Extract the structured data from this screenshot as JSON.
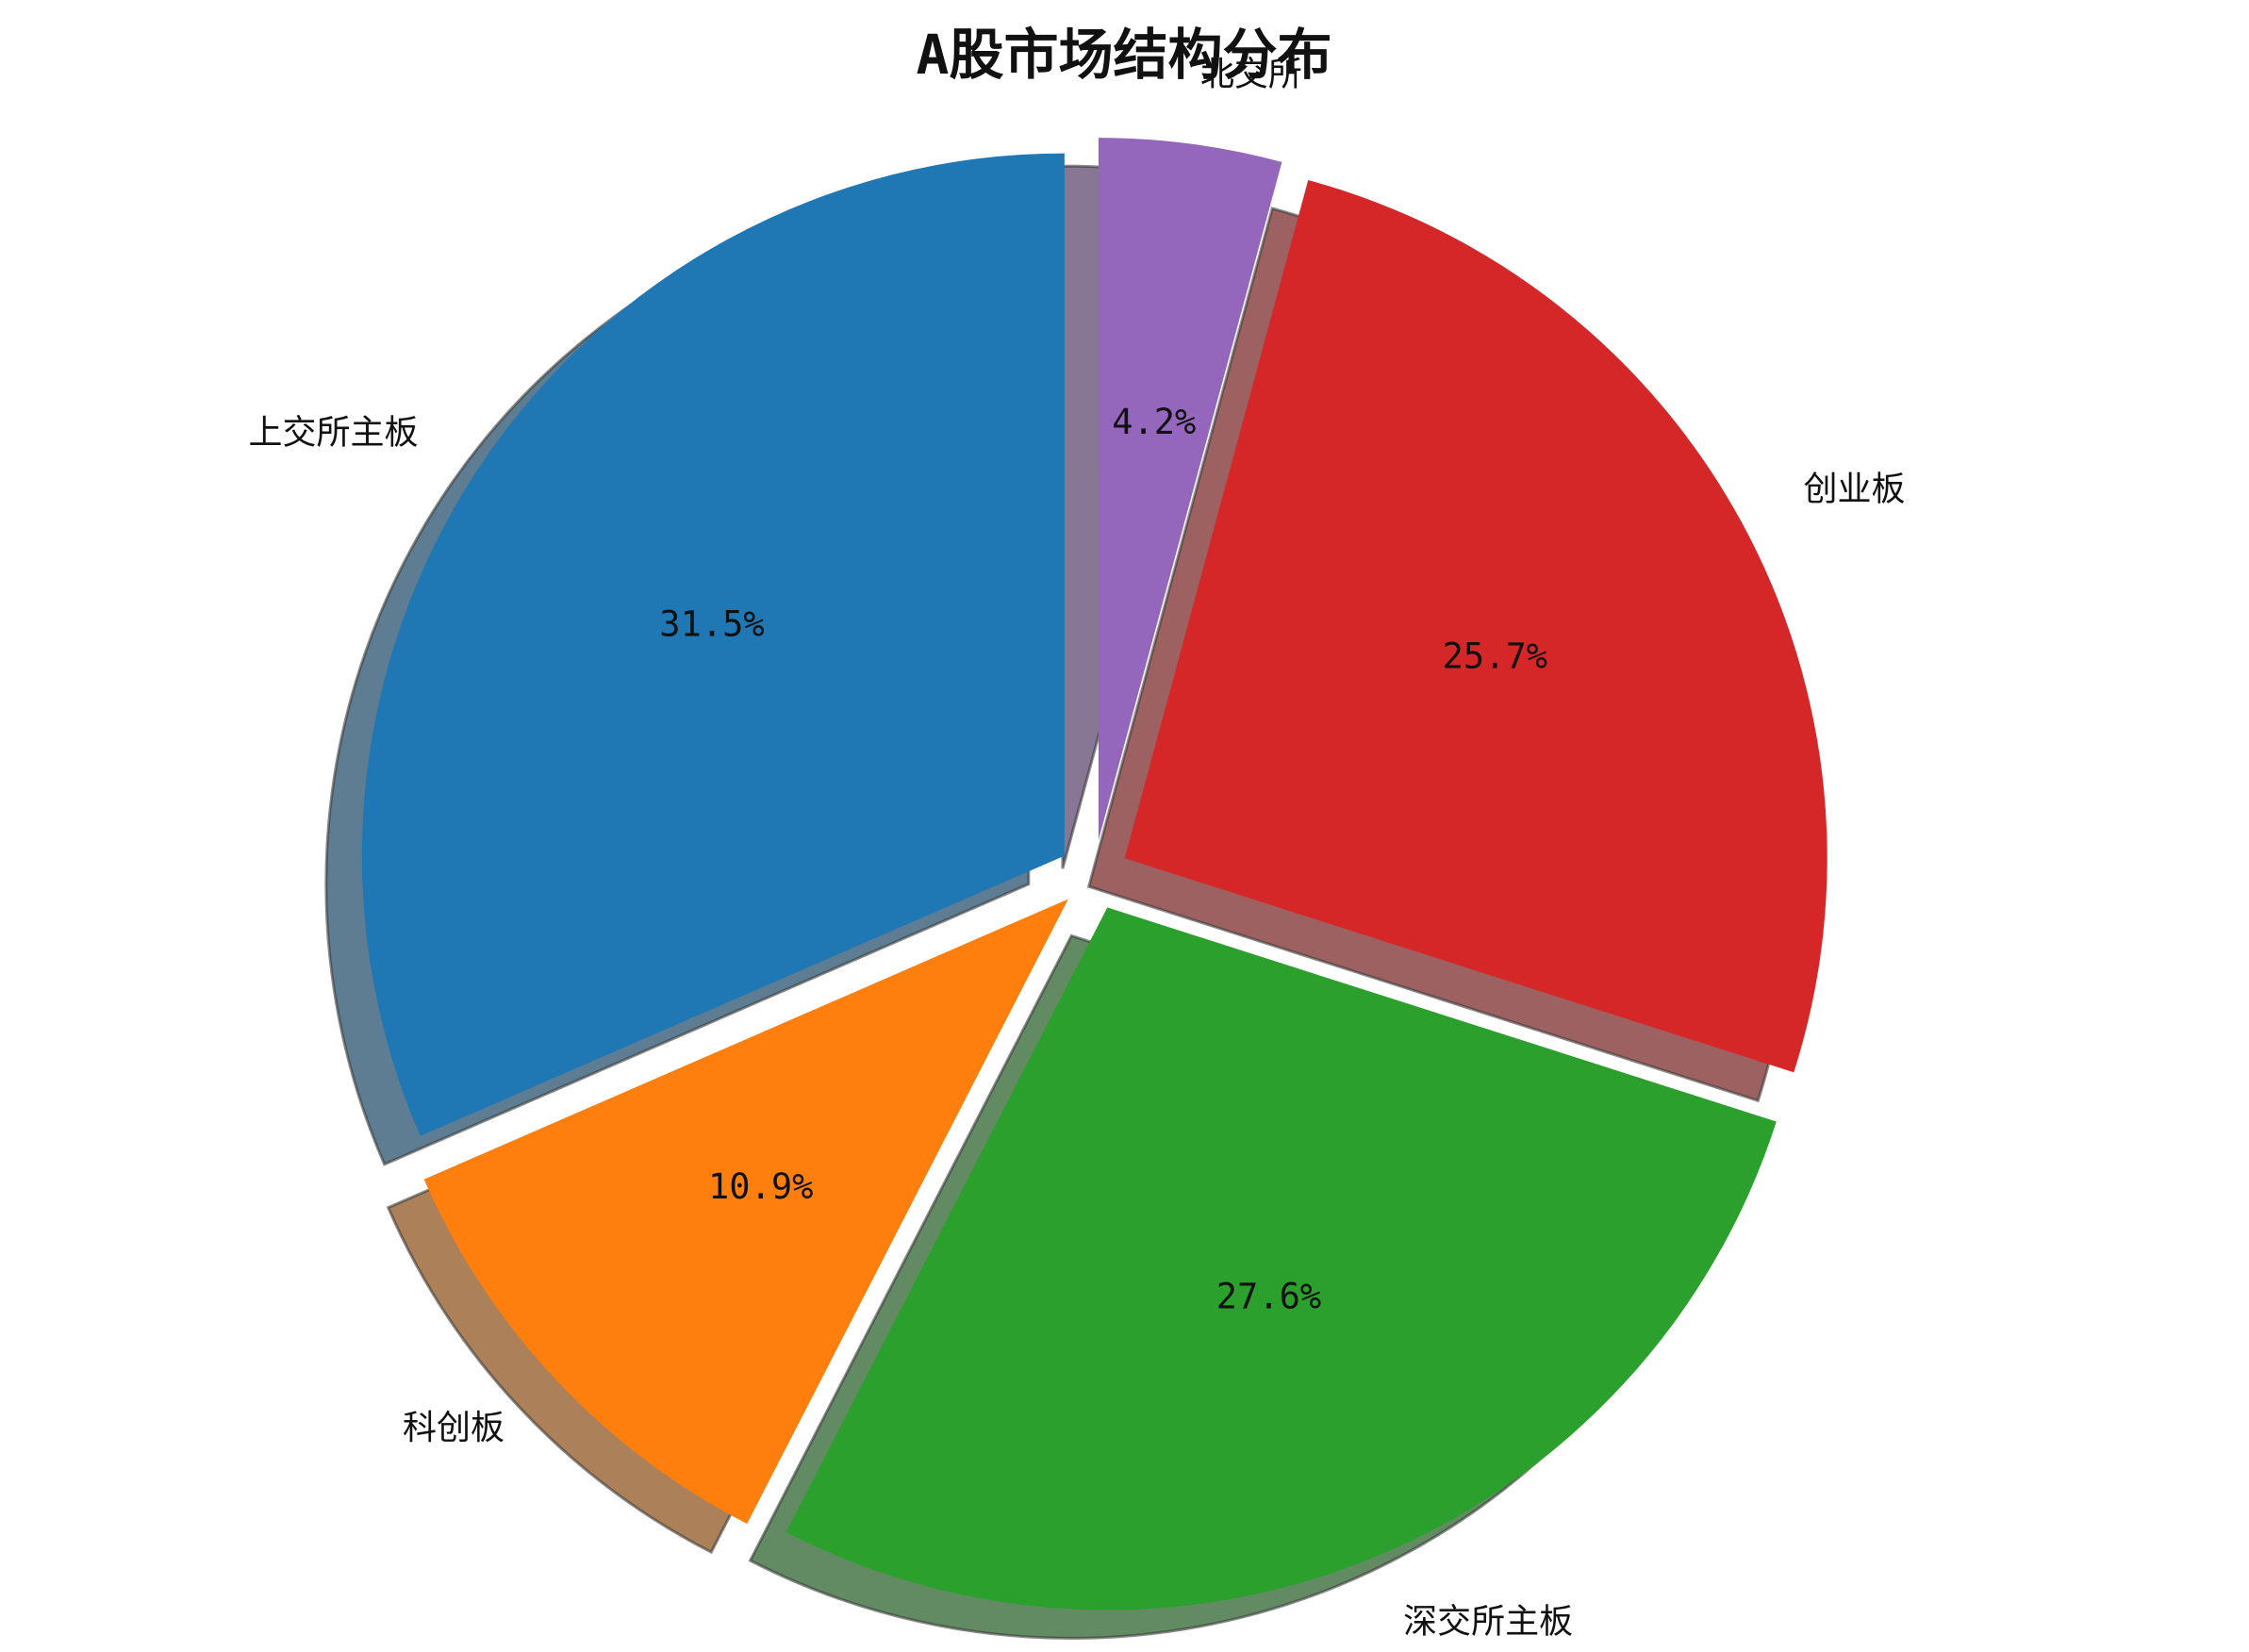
{
  "chart_data": {
    "type": "pie",
    "title": "A股市场结构分布",
    "slices": [
      {
        "label": "上交所主板",
        "value": 31.5,
        "pct_label": "31.5%",
        "color": "#1f77b4",
        "explode": 0.05
      },
      {
        "label": "科创板",
        "value": 10.9,
        "pct_label": "10.9%",
        "color": "#ff7f0e",
        "explode": 0.05
      },
      {
        "label": "深交所主板",
        "value": 27.6,
        "pct_label": "27.6%",
        "color": "#2ca02c",
        "explode": 0.05
      },
      {
        "label": "创业板",
        "value": 25.7,
        "pct_label": "25.7%",
        "color": "#d62728",
        "explode": 0.05
      },
      {
        "label": "北交所",
        "value": 4.2,
        "pct_label": "4.2%",
        "color": "#9467bd",
        "explode": 0.05
      }
    ],
    "start_angle": 90,
    "direction": "counterclockwise",
    "shadow": true,
    "legend": "none"
  }
}
